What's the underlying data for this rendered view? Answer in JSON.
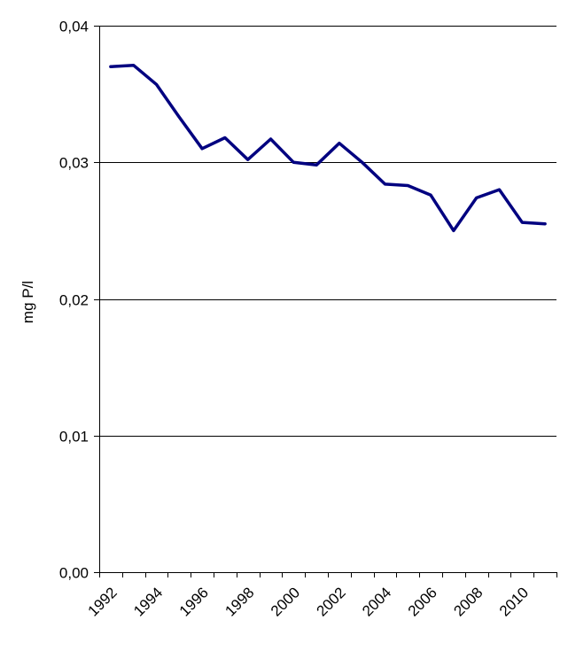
{
  "chart_data": {
    "type": "line",
    "title": "",
    "xlabel": "",
    "ylabel": "mg P/l",
    "ylim": [
      0,
      0.04
    ],
    "xlim": [
      1992,
      2011
    ],
    "grid": true,
    "y_ticks": [
      {
        "value": 0.0,
        "label": "0,00"
      },
      {
        "value": 0.01,
        "label": "0,01"
      },
      {
        "value": 0.02,
        "label": "0,02"
      },
      {
        "value": 0.03,
        "label": "0,03"
      },
      {
        "value": 0.04,
        "label": "0,04"
      }
    ],
    "x_ticks": [
      {
        "value": 1992,
        "label": "1992"
      },
      {
        "value": 1994,
        "label": "1994"
      },
      {
        "value": 1996,
        "label": "1996"
      },
      {
        "value": 1998,
        "label": "1998"
      },
      {
        "value": 2000,
        "label": "2000"
      },
      {
        "value": 2002,
        "label": "2002"
      },
      {
        "value": 2004,
        "label": "2004"
      },
      {
        "value": 2006,
        "label": "2006"
      },
      {
        "value": 2008,
        "label": "2008"
      },
      {
        "value": 2010,
        "label": "2010"
      }
    ],
    "series": [
      {
        "color": "#000080",
        "x": [
          1992,
          1993,
          1994,
          1995,
          1996,
          1997,
          1998,
          1999,
          2000,
          2001,
          2002,
          2003,
          2004,
          2005,
          2006,
          2007,
          2008,
          2009,
          2010,
          2011
        ],
        "values": [
          0.037,
          0.0371,
          0.0357,
          0.0333,
          0.031,
          0.0318,
          0.0302,
          0.0317,
          0.03,
          0.0298,
          0.0314,
          0.03,
          0.0284,
          0.0283,
          0.0276,
          0.025,
          0.0274,
          0.028,
          0.0256,
          0.0255
        ]
      }
    ]
  }
}
